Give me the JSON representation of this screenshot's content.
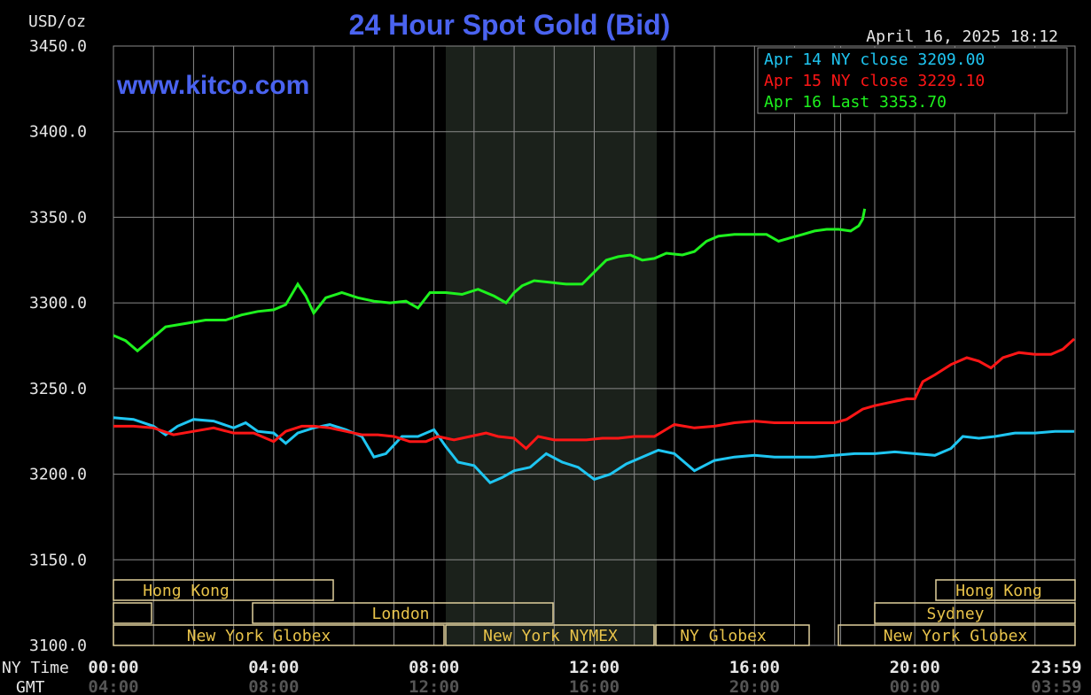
{
  "header": {
    "title": "24 Hour Spot Gold (Bid)",
    "unit": "USD/oz",
    "timestamp": "April 16, 2025 18:12",
    "website": "www.kitco.com"
  },
  "colors": {
    "background": "#000000",
    "grid": "#8a8a8a",
    "title": "#4a63f0",
    "nymex_shade": "#1b211b",
    "session_text": "#e8c34a",
    "session_border": "#e0cf9c",
    "apr14": "#1fc6f2",
    "apr15": "#ff1616",
    "apr16": "#1ef21e"
  },
  "axis": {
    "time_row_label": "NY Time",
    "gmt_row_label": "GMT",
    "ny_ticks": [
      "00:00",
      "04:00",
      "08:00",
      "12:00",
      "16:00",
      "20:00",
      "23:59"
    ],
    "gmt_ticks": [
      "04:00",
      "08:00",
      "12:00",
      "16:00",
      "20:00",
      "00:00",
      "03:59"
    ]
  },
  "sessions": {
    "hk1": "Hong Kong",
    "london": "London",
    "nyg1": "New York Globex",
    "nymex": "New York NYMEX",
    "nyg2": "NY Globex",
    "hk2": "Hong Kong",
    "sydney": "Sydney",
    "nyg3": "New York Globex"
  },
  "chart_data": {
    "type": "line",
    "title": "24 Hour Spot Gold (Bid)",
    "ylabel": "USD/oz",
    "xlabel": "NY Time",
    "ylim": [
      3100,
      3450
    ],
    "xlim": [
      0,
      24
    ],
    "yticks": [
      "3100.0",
      "3150.0",
      "3200.0",
      "3250.0",
      "3300.0",
      "3350.0",
      "3400.0",
      "3450.0"
    ],
    "ytick_values": [
      3100,
      3150,
      3200,
      3250,
      3300,
      3350,
      3400,
      3450
    ],
    "legend_position": "top-right",
    "grid": true,
    "series": [
      {
        "name": "Apr 14 NY close 3209.00",
        "color": "#1fc6f2",
        "points": [
          [
            0,
            3233
          ],
          [
            0.5,
            3232
          ],
          [
            1,
            3228
          ],
          [
            1.3,
            3223
          ],
          [
            1.6,
            3228
          ],
          [
            2,
            3232
          ],
          [
            2.5,
            3231
          ],
          [
            3,
            3227
          ],
          [
            3.3,
            3230
          ],
          [
            3.6,
            3225
          ],
          [
            4,
            3224
          ],
          [
            4.3,
            3218
          ],
          [
            4.6,
            3224
          ],
          [
            5,
            3227
          ],
          [
            5.4,
            3229
          ],
          [
            5.8,
            3226
          ],
          [
            6.2,
            3222
          ],
          [
            6.5,
            3210
          ],
          [
            6.8,
            3212
          ],
          [
            7.2,
            3222
          ],
          [
            7.6,
            3222
          ],
          [
            8,
            3226
          ],
          [
            8.3,
            3216
          ],
          [
            8.6,
            3207
          ],
          [
            9,
            3205
          ],
          [
            9.4,
            3195
          ],
          [
            9.7,
            3198
          ],
          [
            10,
            3202
          ],
          [
            10.4,
            3204
          ],
          [
            10.8,
            3212
          ],
          [
            11.2,
            3207
          ],
          [
            11.6,
            3204
          ],
          [
            12,
            3197
          ],
          [
            12.4,
            3200
          ],
          [
            12.8,
            3206
          ],
          [
            13.2,
            3210
          ],
          [
            13.6,
            3214
          ],
          [
            14,
            3212
          ],
          [
            14.5,
            3202
          ],
          [
            15,
            3208
          ],
          [
            15.5,
            3210
          ],
          [
            16,
            3211
          ],
          [
            16.5,
            3210
          ],
          [
            17,
            3210
          ],
          [
            17.5,
            3210
          ],
          [
            18,
            3211
          ],
          [
            18.5,
            3212
          ],
          [
            19,
            3212
          ],
          [
            19.5,
            3213
          ],
          [
            20,
            3212
          ],
          [
            20.5,
            3211
          ],
          [
            20.9,
            3215
          ],
          [
            21.2,
            3222
          ],
          [
            21.6,
            3221
          ],
          [
            22,
            3222
          ],
          [
            22.5,
            3224
          ],
          [
            23,
            3224
          ],
          [
            23.5,
            3225
          ],
          [
            23.98,
            3225
          ]
        ]
      },
      {
        "name": "Apr 15 NY close 3229.10",
        "color": "#ff1616",
        "points": [
          [
            0,
            3228
          ],
          [
            0.5,
            3228
          ],
          [
            1,
            3227
          ],
          [
            1.5,
            3223
          ],
          [
            2,
            3225
          ],
          [
            2.5,
            3227
          ],
          [
            3,
            3224
          ],
          [
            3.5,
            3224
          ],
          [
            4,
            3219
          ],
          [
            4.3,
            3225
          ],
          [
            4.7,
            3228
          ],
          [
            5,
            3228
          ],
          [
            5.4,
            3227
          ],
          [
            5.8,
            3225
          ],
          [
            6.2,
            3223
          ],
          [
            6.6,
            3223
          ],
          [
            7,
            3222
          ],
          [
            7.4,
            3219
          ],
          [
            7.8,
            3219
          ],
          [
            8.1,
            3222
          ],
          [
            8.5,
            3220
          ],
          [
            8.9,
            3222
          ],
          [
            9.3,
            3224
          ],
          [
            9.6,
            3222
          ],
          [
            10,
            3221
          ],
          [
            10.3,
            3215
          ],
          [
            10.6,
            3222
          ],
          [
            11,
            3220
          ],
          [
            11.4,
            3220
          ],
          [
            11.8,
            3220
          ],
          [
            12.2,
            3221
          ],
          [
            12.6,
            3221
          ],
          [
            13,
            3222
          ],
          [
            13.5,
            3222
          ],
          [
            14,
            3229
          ],
          [
            14.5,
            3227
          ],
          [
            15,
            3228
          ],
          [
            15.5,
            3230
          ],
          [
            16,
            3231
          ],
          [
            16.5,
            3230
          ],
          [
            17,
            3230
          ],
          [
            17.5,
            3230
          ],
          [
            18,
            3230
          ],
          [
            18.3,
            3232
          ],
          [
            18.7,
            3238
          ],
          [
            19,
            3240
          ],
          [
            19.4,
            3242
          ],
          [
            19.8,
            3244
          ],
          [
            20,
            3244
          ],
          [
            20.2,
            3254
          ],
          [
            20.5,
            3258
          ],
          [
            20.9,
            3264
          ],
          [
            21.3,
            3268
          ],
          [
            21.6,
            3266
          ],
          [
            21.9,
            3262
          ],
          [
            22.2,
            3268
          ],
          [
            22.6,
            3271
          ],
          [
            23,
            3270
          ],
          [
            23.4,
            3270
          ],
          [
            23.7,
            3273
          ],
          [
            23.98,
            3279
          ]
        ]
      },
      {
        "name": "Apr 16 Last 3353.70",
        "color": "#1ef21e",
        "points": [
          [
            0,
            3281
          ],
          [
            0.3,
            3278
          ],
          [
            0.6,
            3272
          ],
          [
            0.9,
            3278
          ],
          [
            1.3,
            3286
          ],
          [
            1.8,
            3288
          ],
          [
            2.3,
            3290
          ],
          [
            2.8,
            3290
          ],
          [
            3.2,
            3293
          ],
          [
            3.6,
            3295
          ],
          [
            4,
            3296
          ],
          [
            4.3,
            3299
          ],
          [
            4.6,
            3311
          ],
          [
            4.8,
            3304
          ],
          [
            5,
            3294
          ],
          [
            5.3,
            3303
          ],
          [
            5.7,
            3306
          ],
          [
            6.1,
            3303
          ],
          [
            6.5,
            3301
          ],
          [
            6.9,
            3300
          ],
          [
            7.3,
            3301
          ],
          [
            7.6,
            3297
          ],
          [
            7.9,
            3306
          ],
          [
            8.3,
            3306
          ],
          [
            8.7,
            3305
          ],
          [
            9.1,
            3308
          ],
          [
            9.5,
            3304
          ],
          [
            9.8,
            3300
          ],
          [
            10,
            3306
          ],
          [
            10.2,
            3310
          ],
          [
            10.5,
            3313
          ],
          [
            10.9,
            3312
          ],
          [
            11.3,
            3311
          ],
          [
            11.7,
            3311
          ],
          [
            12,
            3318
          ],
          [
            12.3,
            3325
          ],
          [
            12.6,
            3327
          ],
          [
            12.9,
            3328
          ],
          [
            13.2,
            3325
          ],
          [
            13.5,
            3326
          ],
          [
            13.8,
            3329
          ],
          [
            14.2,
            3328
          ],
          [
            14.5,
            3330
          ],
          [
            14.8,
            3336
          ],
          [
            15.1,
            3339
          ],
          [
            15.5,
            3340
          ],
          [
            15.9,
            3340
          ],
          [
            16.3,
            3340
          ],
          [
            16.6,
            3336
          ],
          [
            16.9,
            3338
          ],
          [
            17.2,
            3340
          ],
          [
            17.5,
            3342
          ],
          [
            17.8,
            3343
          ],
          [
            18.1,
            3343
          ],
          [
            18.4,
            3342
          ],
          [
            18.6,
            3345
          ],
          [
            18.7,
            3349
          ],
          [
            18.75,
            3355
          ]
        ]
      }
    ]
  }
}
